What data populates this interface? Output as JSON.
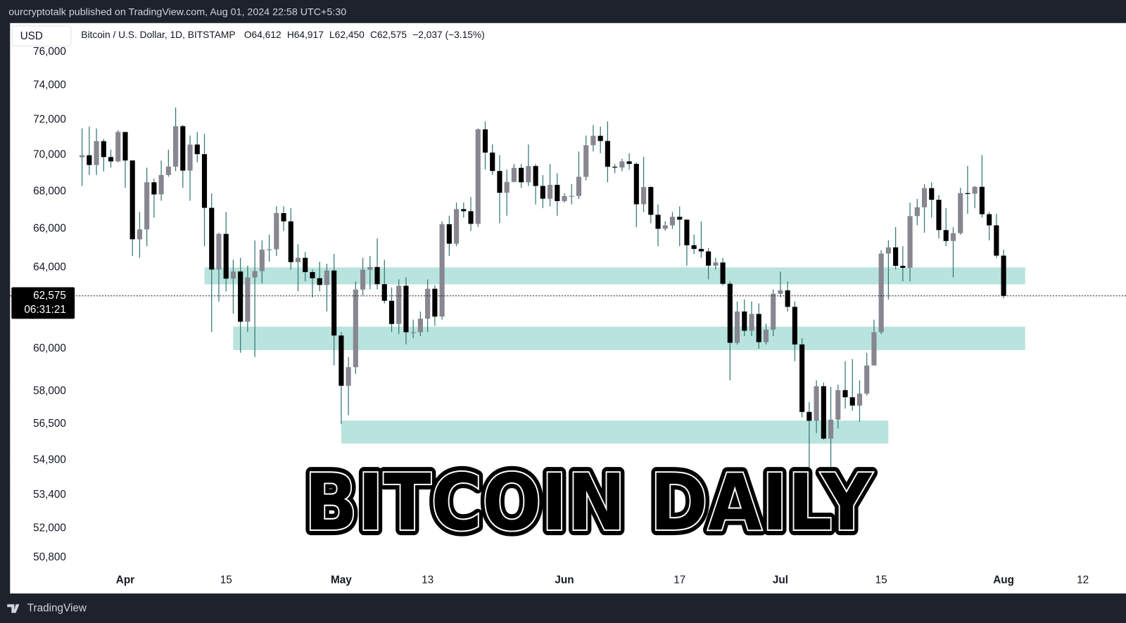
{
  "header": {
    "publisher": "ourcryptotalk published on TradingView.com, Aug 01, 2024 22:58 UTC+5:30",
    "currency_button": "USD",
    "footer_brand": "TradingView"
  },
  "chart_data": {
    "type": "candlestick",
    "title": "BITCOIN DAILY",
    "symbol": "Bitcoin / U.S. Dollar, 1D, BITSTAMP",
    "ohlc_text": [
      "O64,612",
      "H64,917",
      "L62,450",
      "C62,575",
      "−2,037 (−3.15%)"
    ],
    "last_price": {
      "value": 62575,
      "label": "62,575"
    },
    "countdown": "06:31:21",
    "up_color": "#878691",
    "down_color": "#000000",
    "wick_color": "#2f7672",
    "zone_color": "#b9e4dd",
    "log_scale": true,
    "grid": false,
    "ylim": [
      50280,
      76440
    ],
    "yticks": [
      {
        "value": 76000,
        "label": "76,000"
      },
      {
        "value": 74000,
        "label": "74,000"
      },
      {
        "value": 72000,
        "label": "72,000"
      },
      {
        "value": 70000,
        "label": "70,000"
      },
      {
        "value": 68000,
        "label": "68,000"
      },
      {
        "value": 66000,
        "label": "66,000"
      },
      {
        "value": 64000,
        "label": "64,000"
      },
      {
        "value": 60000,
        "label": "60,000"
      },
      {
        "value": 58000,
        "label": "58,000"
      },
      {
        "value": 56500,
        "label": "56,500"
      },
      {
        "value": 54900,
        "label": "54,900"
      },
      {
        "value": 53400,
        "label": "53,400"
      },
      {
        "value": 52000,
        "label": "52,000"
      },
      {
        "value": 50800,
        "label": "50,800"
      }
    ],
    "xlim": [
      "2024-03-16",
      "2024-08-18"
    ],
    "xticks": [
      {
        "value": "2024-04-01",
        "label": "Apr"
      },
      {
        "value": "2024-04-15",
        "label": "15"
      },
      {
        "value": "2024-05-01",
        "label": "May"
      },
      {
        "value": "2024-05-13",
        "label": "13"
      },
      {
        "value": "2024-06-01",
        "label": "Jun"
      },
      {
        "value": "2024-06-17",
        "label": "17"
      },
      {
        "value": "2024-07-01",
        "label": "Jul"
      },
      {
        "value": "2024-07-15",
        "label": "15"
      },
      {
        "value": "2024-08-01",
        "label": "Aug"
      },
      {
        "value": "2024-08-12",
        "label": "12"
      }
    ],
    "zones": [
      {
        "from": "2024-04-12",
        "to": "2024-08-04",
        "low": 63150,
        "high": 64010
      },
      {
        "from": "2024-04-16",
        "to": "2024-08-04",
        "low": 59930,
        "high": 61060
      },
      {
        "from": "2024-05-01",
        "to": "2024-07-16",
        "low": 55630,
        "high": 56660
      }
    ],
    "x": [
      "2024-03-26",
      "2024-03-27",
      "2024-03-28",
      "2024-03-29",
      "2024-03-30",
      "2024-03-31",
      "2024-04-01",
      "2024-04-02",
      "2024-04-03",
      "2024-04-04",
      "2024-04-05",
      "2024-04-06",
      "2024-04-07",
      "2024-04-08",
      "2024-04-09",
      "2024-04-10",
      "2024-04-11",
      "2024-04-12",
      "2024-04-13",
      "2024-04-14",
      "2024-04-15",
      "2024-04-16",
      "2024-04-17",
      "2024-04-18",
      "2024-04-19",
      "2024-04-20",
      "2024-04-21",
      "2024-04-22",
      "2024-04-23",
      "2024-04-24",
      "2024-04-25",
      "2024-04-26",
      "2024-04-27",
      "2024-04-28",
      "2024-04-29",
      "2024-04-30",
      "2024-05-01",
      "2024-05-02",
      "2024-05-03",
      "2024-05-04",
      "2024-05-05",
      "2024-05-06",
      "2024-05-07",
      "2024-05-08",
      "2024-05-09",
      "2024-05-10",
      "2024-05-11",
      "2024-05-12",
      "2024-05-13",
      "2024-05-14",
      "2024-05-15",
      "2024-05-16",
      "2024-05-17",
      "2024-05-18",
      "2024-05-19",
      "2024-05-20",
      "2024-05-21",
      "2024-05-22",
      "2024-05-23",
      "2024-05-24",
      "2024-05-25",
      "2024-05-26",
      "2024-05-27",
      "2024-05-28",
      "2024-05-29",
      "2024-05-30",
      "2024-05-31",
      "2024-06-01",
      "2024-06-02",
      "2024-06-03",
      "2024-06-04",
      "2024-06-05",
      "2024-06-06",
      "2024-06-07",
      "2024-06-08",
      "2024-06-09",
      "2024-06-10",
      "2024-06-11",
      "2024-06-12",
      "2024-06-13",
      "2024-06-14",
      "2024-06-15",
      "2024-06-16",
      "2024-06-17",
      "2024-06-18",
      "2024-06-19",
      "2024-06-20",
      "2024-06-21",
      "2024-06-22",
      "2024-06-23",
      "2024-06-24",
      "2024-06-25",
      "2024-06-26",
      "2024-06-27",
      "2024-06-28",
      "2024-06-29",
      "2024-06-30",
      "2024-07-01",
      "2024-07-02",
      "2024-07-03",
      "2024-07-04",
      "2024-07-05",
      "2024-07-06",
      "2024-07-07",
      "2024-07-08",
      "2024-07-09",
      "2024-07-10",
      "2024-07-11",
      "2024-07-12",
      "2024-07-13",
      "2024-07-14",
      "2024-07-15",
      "2024-07-16",
      "2024-07-17",
      "2024-07-18",
      "2024-07-19",
      "2024-07-20",
      "2024-07-21",
      "2024-07-22",
      "2024-07-23",
      "2024-07-24",
      "2024-07-25",
      "2024-07-26",
      "2024-07-27",
      "2024-07-28",
      "2024-07-29",
      "2024-07-30",
      "2024-07-31",
      "2024-08-01"
    ],
    "open": [
      69880,
      69990,
      69450,
      70780,
      69890,
      69650,
      71300,
      69700,
      65460,
      65980,
      68500,
      67840,
      68900,
      69360,
      71630,
      69140,
      70590,
      70050,
      67120,
      63900,
      65740,
      63440,
      63800,
      61300,
      63500,
      63820,
      64920,
      64940,
      66840,
      66400,
      64280,
      64500,
      63770,
      63460,
      63120,
      63850,
      60630,
      58250,
      59120,
      62890,
      63890,
      64030,
      63160,
      62330,
      61190,
      63080,
      60790,
      60790,
      61450,
      62930,
      61550,
      66250,
      65230,
      67050,
      66940,
      66270,
      71450,
      70140,
      69120,
      67930,
      68520,
      69290,
      68500,
      69390,
      68300,
      67610,
      68360,
      67480,
      67750,
      67760,
      68800,
      70550,
      71080,
      70790,
      69350,
      69310,
      69650,
      69510,
      67310,
      68240,
      66750,
      66010,
      66190,
      66640,
      66490,
      65150,
      64960,
      64830,
      64100,
      64260,
      63180,
      60280,
      61800,
      60860,
      61680,
      60310,
      60910,
      62680,
      62850,
      62030,
      60200,
      57050,
      56650,
      58230,
      55850,
      56700,
      58050,
      57720,
      57340,
      57890,
      59200,
      60790,
      64720,
      65040,
      64090,
      63990,
      66680,
      67150,
      68180,
      67550,
      65940,
      65370,
      65780,
      67910,
      67880,
      68250,
      66780,
      66190,
      64612
    ],
    "high": [
      71500,
      71600,
      71500,
      70900,
      70300,
      71400,
      71300,
      69700,
      66900,
      69300,
      68700,
      69700,
      70300,
      72700,
      71700,
      71100,
      71300,
      71200,
      67900,
      65800,
      66900,
      64400,
      64500,
      64100,
      65400,
      65400,
      65700,
      67200,
      67200,
      67100,
      65200,
      64800,
      63900,
      64300,
      64200,
      64700,
      60800,
      59600,
      63300,
      64500,
      64600,
      65500,
      64400,
      63000,
      63400,
      63500,
      61400,
      61800,
      63400,
      63100,
      66400,
      66700,
      67400,
      67400,
      67700,
      71500,
      71900,
      70600,
      70000,
      69200,
      69500,
      69500,
      70600,
      69500,
      68900,
      69500,
      69000,
      67900,
      68400,
      70200,
      71100,
      71700,
      71600,
      71900,
      69500,
      69800,
      70100,
      69600,
      69900,
      68300,
      67300,
      66400,
      66900,
      67200,
      66500,
      65700,
      66400,
      65000,
      64500,
      64500,
      63300,
      62300,
      62400,
      62300,
      62200,
      61200,
      62900,
      63800,
      63300,
      62300,
      60500,
      57500,
      58500,
      58400,
      58200,
      58300,
      59400,
      59500,
      58500,
      59800,
      61400,
      64900,
      65400,
      66100,
      65100,
      67400,
      67600,
      68400,
      68500,
      67800,
      67100,
      66100,
      68200,
      69400,
      68300,
      70000,
      66900,
      66800,
      64917
    ],
    "low": [
      68300,
      68900,
      68900,
      69100,
      69300,
      69600,
      68200,
      64600,
      64500,
      65100,
      66600,
      67500,
      68800,
      69100,
      68200,
      67500,
      69600,
      65100,
      60800,
      62300,
      62800,
      61700,
      59800,
      60800,
      59600,
      63200,
      64300,
      64600,
      65900,
      63900,
      62800,
      63300,
      62500,
      62800,
      61800,
      59200,
      56500,
      56900,
      58800,
      62600,
      62900,
      62900,
      62200,
      60800,
      60700,
      60200,
      60500,
      60600,
      60800,
      61100,
      61400,
      64600,
      65100,
      66600,
      65900,
      66100,
      69200,
      68900,
      66300,
      66700,
      68500,
      68200,
      68300,
      67300,
      67100,
      67200,
      66700,
      67400,
      67300,
      67600,
      68600,
      70200,
      70100,
      68500,
      69000,
      69100,
      69200,
      66100,
      66900,
      66300,
      65100,
      65900,
      66000,
      65100,
      64100,
      64700,
      64500,
      63400,
      63900,
      63100,
      58500,
      60200,
      60600,
      60600,
      60000,
      60200,
      60600,
      62500,
      61800,
      59400,
      56800,
      53500,
      56100,
      55800,
      54300,
      56300,
      57200,
      57100,
      56600,
      57800,
      59200,
      60700,
      62400,
      63900,
      63300,
      63300,
      66200,
      65800,
      66600,
      65500,
      65100,
      63500,
      65700,
      66800,
      67100,
      66600,
      65400,
      64500,
      62450
    ],
    "close": [
      69990,
      69450,
      70780,
      69890,
      69650,
      71300,
      69700,
      65460,
      65980,
      68500,
      67840,
      68900,
      69360,
      71630,
      69140,
      70590,
      70050,
      67120,
      63900,
      65740,
      63440,
      63800,
      61300,
      63500,
      63820,
      64920,
      64940,
      66840,
      66400,
      64280,
      64500,
      63770,
      63460,
      63120,
      63850,
      60630,
      58250,
      59120,
      62890,
      63890,
      64030,
      63160,
      62330,
      61190,
      63080,
      60790,
      60790,
      61450,
      62930,
      61550,
      66250,
      65230,
      67050,
      66940,
      66270,
      71450,
      70140,
      69120,
      67930,
      68520,
      69290,
      68500,
      69390,
      68300,
      67610,
      68360,
      67480,
      67750,
      67760,
      68800,
      70550,
      71080,
      70790,
      69350,
      69310,
      69650,
      69510,
      67310,
      68240,
      66750,
      66010,
      66190,
      66640,
      66490,
      65150,
      64960,
      64830,
      64100,
      64260,
      63180,
      60280,
      61800,
      60860,
      61680,
      60310,
      60910,
      62680,
      62850,
      62030,
      60200,
      57050,
      56650,
      58230,
      55850,
      56700,
      58050,
      57720,
      57340,
      57890,
      59200,
      60790,
      64720,
      65040,
      64090,
      63990,
      66680,
      67150,
      68180,
      67550,
      65940,
      65370,
      65780,
      67910,
      67880,
      68250,
      66780,
      66190,
      64612,
      62575
    ]
  }
}
